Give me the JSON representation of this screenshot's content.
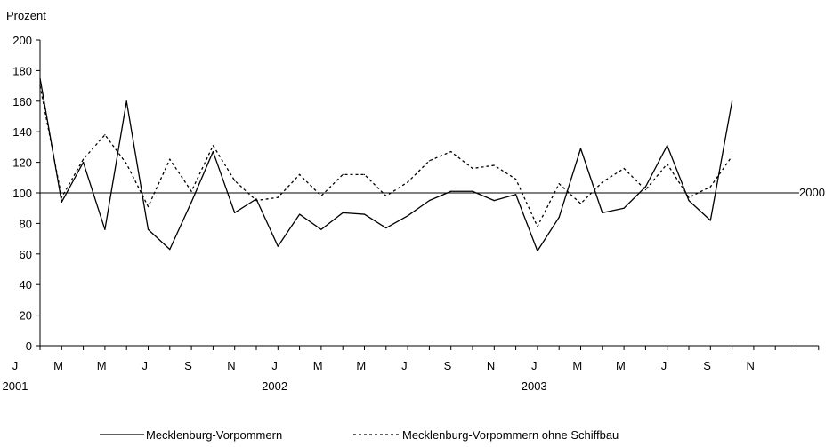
{
  "chart_data": {
    "type": "line",
    "ylabel": "Prozent",
    "ylim": [
      0,
      200
    ],
    "yticks": [
      0,
      20,
      40,
      60,
      80,
      100,
      120,
      140,
      160,
      180,
      200
    ],
    "month_labels": [
      "J",
      "M",
      "M",
      "J",
      "S",
      "N",
      "J",
      "M",
      "M",
      "J",
      "S",
      "N",
      "J",
      "M",
      "M",
      "J",
      "S",
      "N"
    ],
    "year_labels": [
      "2001",
      "2002",
      "2003"
    ],
    "reference_line": {
      "value": 100,
      "label": "2000"
    },
    "legend_position": "bottom",
    "series": [
      {
        "name": "Mecklenburg-Vorpommern",
        "style": "solid",
        "values": [
          175,
          94,
          120,
          76,
          160,
          76,
          63,
          94,
          127,
          87,
          96,
          65,
          86,
          76,
          87,
          86,
          77,
          85,
          95,
          101,
          101,
          95,
          99,
          62,
          84,
          129,
          87,
          90,
          104,
          131,
          95,
          82,
          160
        ]
      },
      {
        "name": "Mecklenburg-Vorpommern ohne Schiffbau",
        "style": "dashed",
        "values": [
          170,
          97,
          122,
          138,
          119,
          91,
          122,
          101,
          131,
          108,
          95,
          97,
          112,
          98,
          112,
          112,
          98,
          107,
          121,
          127,
          116,
          118,
          109,
          78,
          106,
          93,
          107,
          116,
          102,
          119,
          97,
          104,
          124
        ]
      }
    ]
  }
}
